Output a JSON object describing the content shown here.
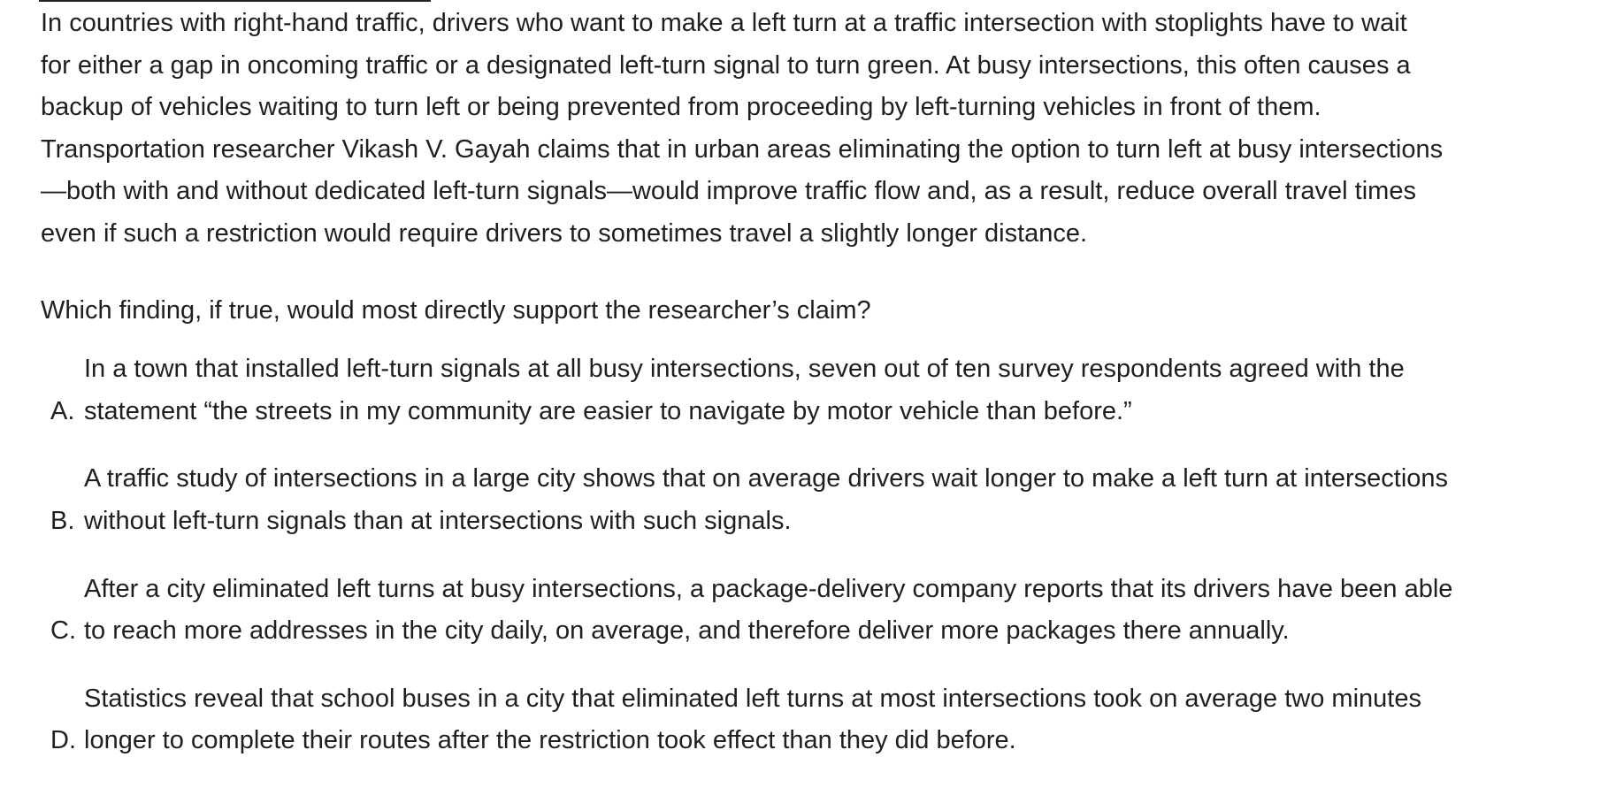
{
  "passage": {
    "lines": [
      "In countries with right-hand traffic, drivers who want to make a left turn at a traffic intersection with stoplights have to wait",
      "for either a gap in oncoming traffic or a designated left-turn signal to turn green. At busy intersections, this often causes a",
      "backup of vehicles waiting to turn left or being prevented from proceeding by left-turning vehicles in front of them.",
      "Transportation researcher Vikash V. Gayah claims that in urban areas eliminating the option to turn left at busy intersections",
      "—both with and without dedicated left-turn signals—would improve traffic flow and, as a result, reduce overall travel times",
      "even if such a restriction would require drivers to sometimes travel a slightly longer distance."
    ]
  },
  "question": {
    "text": "Which finding, if true, would most directly support the researcher’s claim?"
  },
  "choices": [
    {
      "letter": "A.",
      "lines": [
        "In a town that installed left-turn signals at all busy intersections, seven out of ten survey respondents agreed with the",
        "statement “the streets in my community are easier to navigate by motor vehicle than before.”"
      ]
    },
    {
      "letter": "B.",
      "lines": [
        "A traffic study of intersections in a large city shows that on average drivers wait longer to make a left turn at intersections",
        "without left-turn signals than at intersections with such signals."
      ]
    },
    {
      "letter": "C.",
      "lines": [
        "After a city eliminated left turns at busy intersections, a package-delivery company reports that its drivers have been able",
        "to reach more addresses in the city daily, on average, and therefore deliver more packages there annually."
      ]
    },
    {
      "letter": "D.",
      "lines": [
        "Statistics reveal that school buses in a city that eliminated left turns at most intersections took on average two minutes",
        "longer to complete their routes after the restriction took effect than they did before."
      ]
    }
  ]
}
